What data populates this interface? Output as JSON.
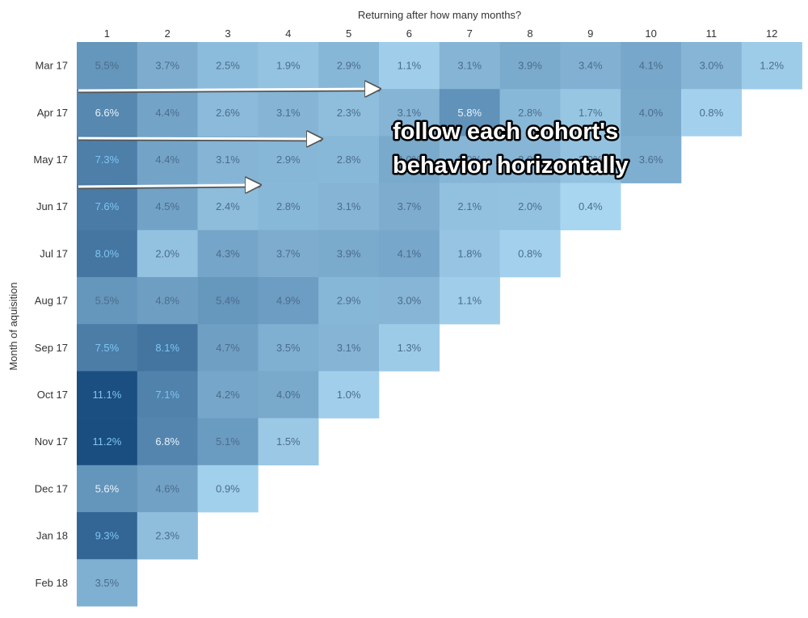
{
  "chart_data": {
    "type": "heatmap",
    "title": "",
    "xlabel": "Returning after how many months?",
    "ylabel": "Month of aquisition",
    "x_categories": [
      "1",
      "2",
      "3",
      "4",
      "5",
      "6",
      "7",
      "8",
      "9",
      "10",
      "11",
      "12"
    ],
    "y_categories": [
      "Mar 17",
      "Apr 17",
      "May 17",
      "Jun 17",
      "Jul 17",
      "Aug 17",
      "Sep 17",
      "Oct 17",
      "Nov 17",
      "Dec 17",
      "Jan 18",
      "Feb 18"
    ],
    "unit": "%",
    "rows": [
      {
        "cohort": "Mar 17",
        "values": [
          5.5,
          3.7,
          2.5,
          1.9,
          2.9,
          1.1,
          3.1,
          3.9,
          3.4,
          4.1,
          3.0,
          1.2
        ]
      },
      {
        "cohort": "Apr 17",
        "values": [
          6.6,
          4.4,
          2.6,
          3.1,
          2.3,
          3.1,
          5.8,
          2.8,
          1.7,
          4.0,
          0.8
        ]
      },
      {
        "cohort": "May 17",
        "values": [
          7.3,
          4.4,
          3.1,
          2.9,
          2.8,
          4.0,
          3.0,
          3.0,
          2.0,
          3.6
        ]
      },
      {
        "cohort": "Jun 17",
        "values": [
          7.6,
          4.5,
          2.4,
          2.8,
          3.1,
          3.7,
          2.1,
          2.0,
          0.4
        ]
      },
      {
        "cohort": "Jul 17",
        "values": [
          8.0,
          2.0,
          4.3,
          3.7,
          3.9,
          4.1,
          1.8,
          0.8
        ]
      },
      {
        "cohort": "Aug 17",
        "values": [
          5.5,
          4.8,
          5.4,
          4.9,
          2.9,
          3.0,
          1.1
        ]
      },
      {
        "cohort": "Sep 17",
        "values": [
          7.5,
          8.1,
          4.7,
          3.5,
          3.1,
          1.3
        ]
      },
      {
        "cohort": "Oct 17",
        "values": [
          11.1,
          7.1,
          4.2,
          4.0,
          1.0
        ]
      },
      {
        "cohort": "Nov 17",
        "values": [
          11.2,
          6.8,
          5.1,
          1.5
        ]
      },
      {
        "cohort": "Dec 17",
        "values": [
          5.6,
          4.6,
          0.9
        ]
      },
      {
        "cohort": "Jan 18",
        "values": [
          9.3,
          2.3
        ]
      },
      {
        "cohort": "Feb 18",
        "values": [
          3.5
        ]
      }
    ],
    "color_scale": {
      "low": "#a8d6f1",
      "high": "#1a4e80"
    },
    "annotation": {
      "lines": [
        "follow each cohort's",
        "behavior horizontally"
      ],
      "arrow_count": 3
    }
  }
}
